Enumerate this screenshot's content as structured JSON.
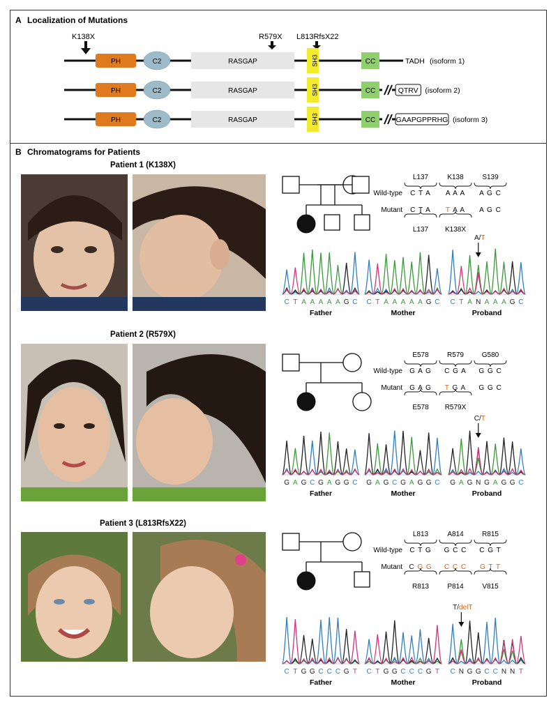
{
  "panel_a": {
    "letter": "A",
    "title": "Localization of Mutations",
    "mutations": [
      "K138X",
      "R579X",
      "L813RfsX22"
    ],
    "domains": {
      "ph": "PH",
      "c2": "C2",
      "rasgap": "RASGAP",
      "sh3": "SH3",
      "cc": "CC"
    },
    "isoforms": [
      {
        "tail": "TADH",
        "label": "(isoform 1)"
      },
      {
        "tail": "QTRV",
        "label": "(isoform 2)"
      },
      {
        "tail": "GAAPGPPRHG",
        "label": "(isoform 3)"
      }
    ],
    "colors": {
      "ph": "#e07a1f",
      "c2": "#9dbbc9",
      "rasgap": "#e6e6e6",
      "sh3": "#f2ea2e",
      "cc": "#8fcf6e"
    }
  },
  "panel_b": {
    "letter": "B",
    "title": "Chromatograms for Patients",
    "row_labels": {
      "wild": "Wild-type",
      "mutant": "Mutant"
    },
    "trace_labels": [
      "Father",
      "Mother",
      "Proband"
    ],
    "patients": [
      {
        "title": "Patient 1 (K138X)",
        "codons_top": [
          "L137",
          "K138",
          "S139"
        ],
        "wild": [
          "C T A",
          "A A A",
          "A G C"
        ],
        "mutant": [
          "C T A",
          "T A A",
          "A G C"
        ],
        "codons_bottom": [
          "L137",
          "K138X",
          ""
        ],
        "annotation": {
          "base": "A/",
          "mut": "T"
        },
        "seqs": [
          "CTAAAAAGC",
          "CTAAAAAGC",
          "CTANAAAGC"
        ]
      },
      {
        "title": "Patient 2 (R579X)",
        "codons_top": [
          "E578",
          "R579",
          "G580"
        ],
        "wild": [
          "G A G",
          "C G A",
          "G G C"
        ],
        "mutant": [
          "G A G",
          "T G A",
          "G G C"
        ],
        "codons_bottom": [
          "E578",
          "R579X",
          ""
        ],
        "annotation": {
          "base": "C/",
          "mut": "T"
        },
        "seqs": [
          "GAGCGAGGC",
          "GAGCGAGGC",
          "GAGNGAGGC"
        ]
      },
      {
        "title": "Patient 3 (L813RfsX22)",
        "codons_top": [
          "L813",
          "A814",
          "R815"
        ],
        "wild": [
          "C T G",
          "G C C",
          "C G T"
        ],
        "mutant": [
          "C G G",
          "C C C",
          "G T T"
        ],
        "codons_bottom": [
          "R813",
          "P814",
          "V815"
        ],
        "annotation": {
          "base": "T/",
          "mut": "delT"
        },
        "seqs": [
          "CTGGCCCGT",
          "CTGGCCCGT",
          "CNGGCCNNT"
        ]
      }
    ]
  },
  "base_colors": {
    "A": "#3a9a3a",
    "C": "#2f7fc1",
    "G": "#222222",
    "T": "#d0357a",
    "N": "#222222"
  },
  "mutation_color": "#d2691e"
}
